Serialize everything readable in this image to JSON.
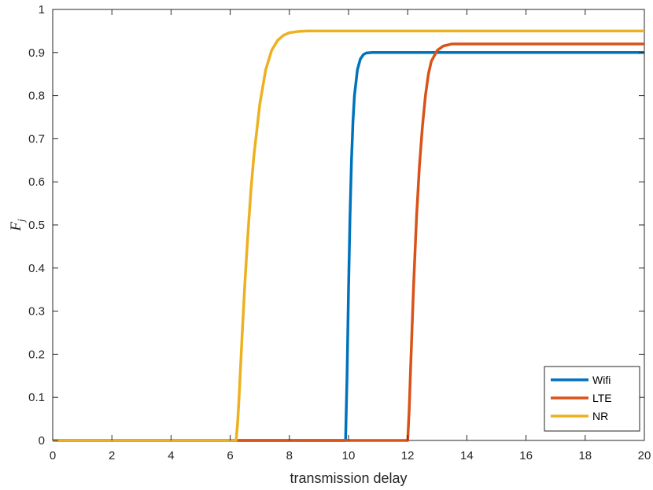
{
  "chart_data": {
    "type": "line",
    "title": "",
    "xlabel": "transmission delay",
    "ylabel": "F",
    "ylabel_subscript": "j",
    "xlim": [
      0,
      20
    ],
    "ylim": [
      0,
      1
    ],
    "xticks": [
      0,
      2,
      4,
      6,
      8,
      10,
      12,
      14,
      16,
      18,
      20
    ],
    "yticks": [
      0,
      0.1,
      0.2,
      0.3,
      0.4,
      0.5,
      0.6,
      0.7,
      0.8,
      0.9,
      1
    ],
    "ytick_labels": [
      "0",
      "0.1",
      "0.2",
      "0.3",
      "0.4",
      "0.5",
      "0.6",
      "0.7",
      "0.8",
      "0.9",
      "1"
    ],
    "grid": false,
    "legend_position": "bottom-right",
    "series": [
      {
        "name": "Wifi",
        "color": "#0072BD",
        "x": [
          0,
          9.9,
          9.95,
          10.0,
          10.05,
          10.1,
          10.15,
          10.2,
          10.3,
          10.4,
          10.5,
          10.6,
          10.8,
          11.0,
          20
        ],
        "y": [
          0,
          0,
          0.15,
          0.35,
          0.52,
          0.65,
          0.74,
          0.8,
          0.86,
          0.885,
          0.895,
          0.899,
          0.9,
          0.9,
          0.9
        ]
      },
      {
        "name": "LTE",
        "color": "#D95319",
        "x": [
          0,
          6.2,
          12.0,
          12.05,
          12.1,
          12.2,
          12.3,
          12.4,
          12.5,
          12.6,
          12.7,
          12.8,
          13.0,
          13.2,
          13.5,
          14.0,
          20
        ],
        "y": [
          0,
          0,
          0,
          0.07,
          0.17,
          0.36,
          0.52,
          0.64,
          0.73,
          0.8,
          0.85,
          0.88,
          0.905,
          0.915,
          0.92,
          0.92,
          0.92
        ]
      },
      {
        "name": "NR",
        "color": "#EDB120",
        "x": [
          0,
          6.2,
          6.25,
          6.3,
          6.4,
          6.5,
          6.6,
          6.7,
          6.8,
          7.0,
          7.2,
          7.4,
          7.6,
          7.8,
          8.0,
          8.3,
          8.6,
          20
        ],
        "y": [
          0,
          0,
          0.04,
          0.1,
          0.24,
          0.37,
          0.48,
          0.58,
          0.66,
          0.78,
          0.86,
          0.905,
          0.928,
          0.94,
          0.946,
          0.949,
          0.95,
          0.95
        ]
      }
    ]
  }
}
